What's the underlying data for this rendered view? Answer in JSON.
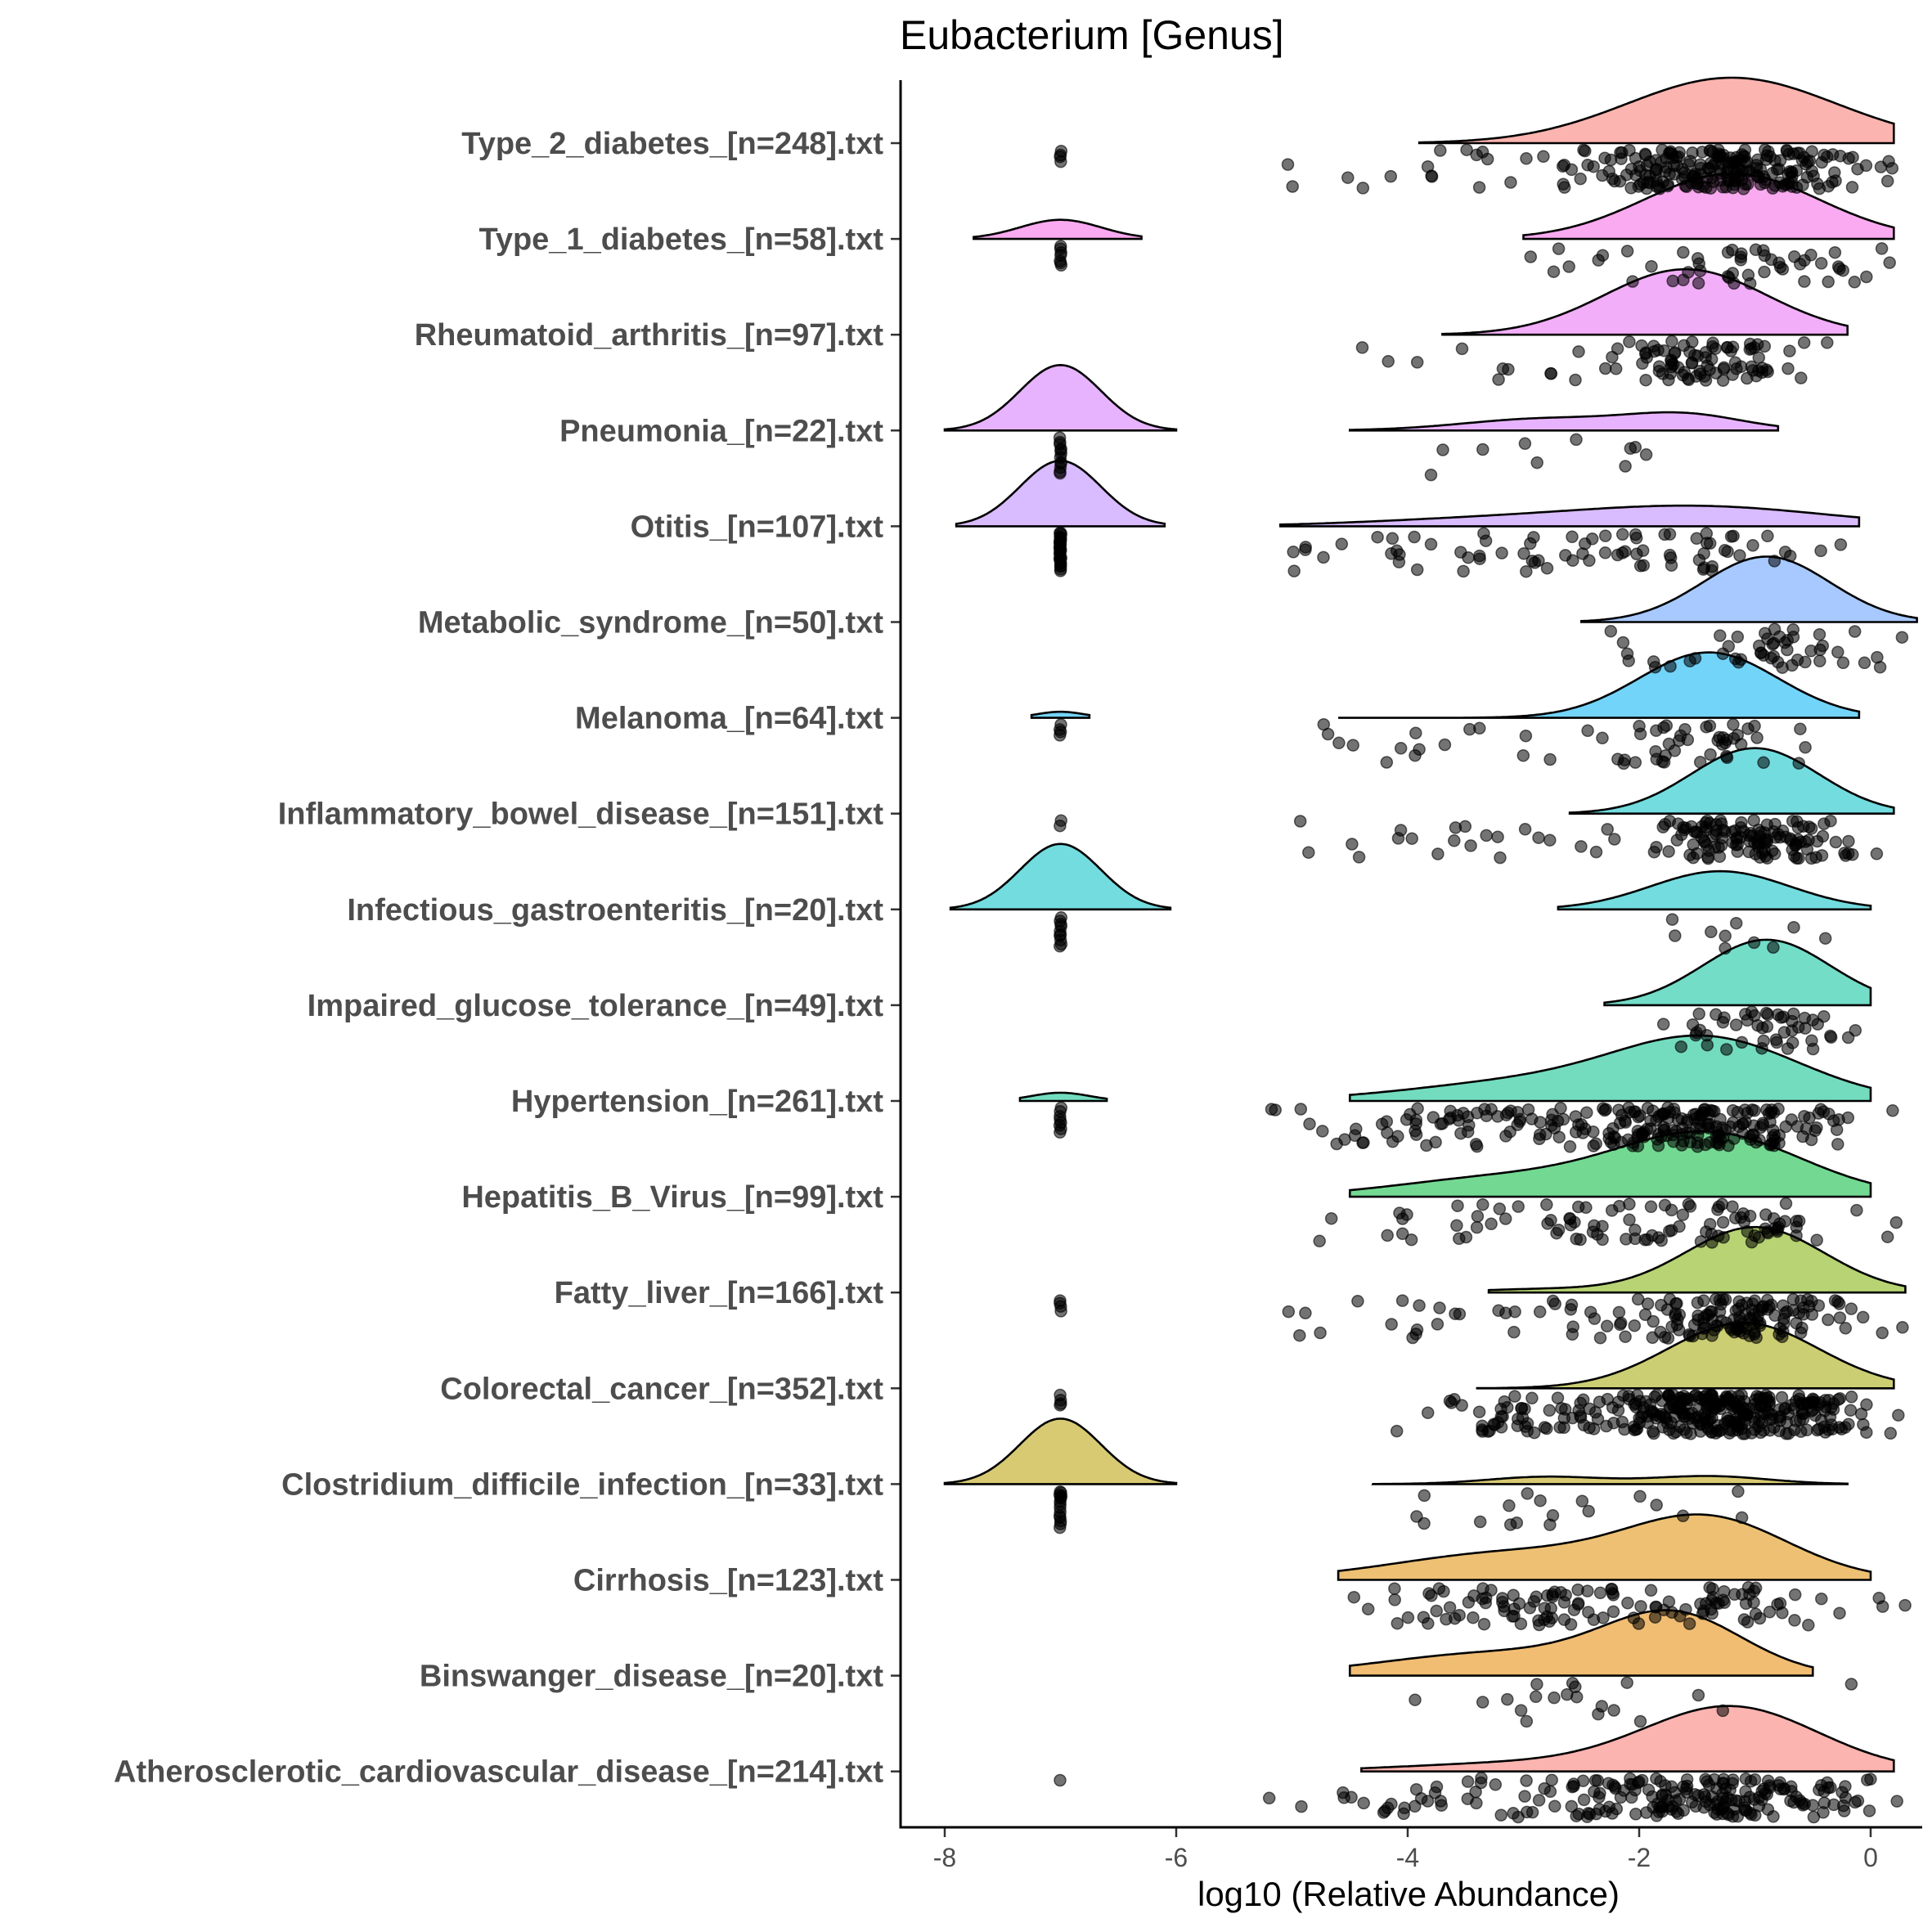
{
  "chart_data": {
    "type": "raincloud",
    "title": "Eubacterium [Genus]",
    "xlabel": "log10 (Relative Abundance)",
    "ylabel": "",
    "xlim": [
      -8.4,
      0.4
    ],
    "x_ticks": [
      -8,
      -6,
      -4,
      -2,
      0
    ],
    "x_tick_labels": [
      "-8",
      "-6",
      "-4",
      "-2",
      "0"
    ],
    "grid": false,
    "series": [
      {
        "name": "Type_2_diabetes_[n=248].txt",
        "n": 248,
        "color": "#f8766d",
        "modes": [
          {
            "mu": -1.2,
            "sd": 0.9,
            "w": 1
          }
        ],
        "range": [
          -3.9,
          0.2
        ],
        "zero_count": 4,
        "clusters": [
          {
            "mu": -1.2,
            "sd": 0.6,
            "w": 0.85
          },
          {
            "mu": -3.0,
            "sd": 0.9,
            "w": 0.15
          }
        ],
        "xmin_pts": -5.7
      },
      {
        "name": "Type_1_diabetes_[n=58].txt",
        "n": 58,
        "color": "#f564e3",
        "modes": [
          {
            "mu": -1.2,
            "sd": 0.75,
            "w": 0.88
          },
          {
            "mu": -7.0,
            "sd": 0.35,
            "w": 0.12
          }
        ],
        "range": [
          -3.0,
          0.2
        ],
        "zero_range": [
          -7.75,
          -6.3
        ],
        "zero_count": 7,
        "clusters": [
          {
            "mu": -1.0,
            "sd": 0.5,
            "w": 0.9
          },
          {
            "mu": -2.6,
            "sd": 0.8,
            "w": 0.1
          }
        ],
        "xmin_pts": -4.6
      },
      {
        "name": "Rheumatoid_arthritis_[n=97].txt",
        "n": 97,
        "color": "#e76bf3",
        "modes": [
          {
            "mu": -1.6,
            "sd": 0.7,
            "w": 1
          }
        ],
        "range": [
          -3.7,
          -0.2
        ],
        "zero_count": 0,
        "clusters": [
          {
            "mu": -1.5,
            "sd": 0.5,
            "w": 0.88
          },
          {
            "mu": -3.2,
            "sd": 0.6,
            "w": 0.12
          }
        ],
        "xmin_pts": -4.5
      },
      {
        "name": "Pneumonia_[n=22].txt",
        "n": 22,
        "color": "#d575fe",
        "modes": [
          {
            "mu": -7.0,
            "sd": 0.35,
            "w": 0.55
          },
          {
            "mu": -2.8,
            "sd": 0.7,
            "w": 0.2
          },
          {
            "mu": -1.6,
            "sd": 0.5,
            "w": 0.18
          }
        ],
        "range": [
          -4.5,
          -0.8
        ],
        "zero_range": [
          -8.0,
          -6.0
        ],
        "zero_count": 12,
        "clusters": [
          {
            "mu": -2.6,
            "sd": 0.8,
            "w": 1
          }
        ],
        "xmin_pts": -4.0
      },
      {
        "name": "Otitis_[n=107].txt",
        "n": 107,
        "color": "#b983ff",
        "modes": [
          {
            "mu": -7.0,
            "sd": 0.35,
            "w": 0.4
          },
          {
            "mu": -1.5,
            "sd": 1.1,
            "w": 0.38
          },
          {
            "mu": -3.5,
            "sd": 1.0,
            "w": 0.1
          }
        ],
        "range": [
          -5.1,
          -0.1
        ],
        "zero_range": [
          -7.9,
          -6.1
        ],
        "zero_count": 30,
        "clusters": [
          {
            "mu": -1.6,
            "sd": 0.7,
            "w": 0.6
          },
          {
            "mu": -3.5,
            "sd": 1.0,
            "w": 0.4
          }
        ],
        "xmin_pts": -5.0
      },
      {
        "name": "Metabolic_syndrome_[n=50].txt",
        "n": 50,
        "color": "#619cff",
        "modes": [
          {
            "mu": -0.9,
            "sd": 0.55,
            "w": 1
          }
        ],
        "range": [
          -2.5,
          0.4
        ],
        "zero_count": 0,
        "clusters": [
          {
            "mu": -0.8,
            "sd": 0.45,
            "w": 0.9
          },
          {
            "mu": -1.9,
            "sd": 0.4,
            "w": 0.1
          }
        ],
        "xmin_pts": -2.3
      },
      {
        "name": "Melanoma_[n=64].txt",
        "n": 64,
        "color": "#00b0f6",
        "modes": [
          {
            "mu": -1.4,
            "sd": 0.6,
            "w": 0.97
          },
          {
            "mu": -7.0,
            "sd": 0.2,
            "w": 0.03
          }
        ],
        "range": [
          -4.6,
          -0.1
        ],
        "zero_range": [
          -7.25,
          -6.75
        ],
        "zero_count": 4,
        "clusters": [
          {
            "mu": -1.5,
            "sd": 0.45,
            "w": 0.8
          },
          {
            "mu": -3.8,
            "sd": 0.7,
            "w": 0.2
          }
        ],
        "xmin_pts": -4.9
      },
      {
        "name": "Inflammatory_bowel_disease_[n=151].txt",
        "n": 151,
        "color": "#00bfc4",
        "modes": [
          {
            "mu": -1.0,
            "sd": 0.55,
            "w": 1
          }
        ],
        "range": [
          -2.6,
          0.2
        ],
        "zero_count": 2,
        "clusters": [
          {
            "mu": -1.0,
            "sd": 0.45,
            "w": 0.88
          },
          {
            "mu": -3.2,
            "sd": 0.9,
            "w": 0.12
          }
        ],
        "xmin_pts": -5.0
      },
      {
        "name": "Infectious_gastroenteritis_[n=20].txt",
        "n": 20,
        "color": "#00bfc4",
        "modes": [
          {
            "mu": -7.0,
            "sd": 0.35,
            "w": 0.5
          },
          {
            "mu": -1.3,
            "sd": 0.6,
            "w": 0.5
          }
        ],
        "range": [
          -2.7,
          0.0
        ],
        "zero_range": [
          -7.95,
          -6.05
        ],
        "zero_count": 10,
        "clusters": [
          {
            "mu": -1.3,
            "sd": 0.6,
            "w": 1
          }
        ],
        "xmin_pts": -2.3
      },
      {
        "name": "Impaired_glucose_tolerance_[n=49].txt",
        "n": 49,
        "color": "#00c19a",
        "modes": [
          {
            "mu": -0.9,
            "sd": 0.55,
            "w": 1
          }
        ],
        "range": [
          -2.3,
          0.0
        ],
        "zero_count": 0,
        "clusters": [
          {
            "mu": -0.9,
            "sd": 0.4,
            "w": 1
          }
        ],
        "xmin_pts": -1.9
      },
      {
        "name": "Hypertension_[n=261].txt",
        "n": 261,
        "color": "#00c08b",
        "modes": [
          {
            "mu": -1.4,
            "sd": 0.8,
            "w": 0.7
          },
          {
            "mu": -3.0,
            "sd": 1.0,
            "w": 0.27
          },
          {
            "mu": -7.0,
            "sd": 0.25,
            "w": 0.03
          }
        ],
        "range": [
          -4.5,
          0.0
        ],
        "zero_range": [
          -7.35,
          -6.6
        ],
        "zero_count": 8,
        "clusters": [
          {
            "mu": -1.6,
            "sd": 0.7,
            "w": 0.7
          },
          {
            "mu": -3.5,
            "sd": 0.8,
            "w": 0.3
          }
        ],
        "xmin_pts": -5.2
      },
      {
        "name": "Hepatitis_B_Virus_[n=99].txt",
        "n": 99,
        "color": "#00ba38",
        "modes": [
          {
            "mu": -1.4,
            "sd": 0.8,
            "w": 0.75
          },
          {
            "mu": -3.2,
            "sd": 0.9,
            "w": 0.25
          }
        ],
        "range": [
          -4.5,
          0.0
        ],
        "zero_count": 0,
        "clusters": [
          {
            "mu": -1.4,
            "sd": 0.7,
            "w": 0.65
          },
          {
            "mu": -3.2,
            "sd": 0.7,
            "w": 0.35
          }
        ],
        "xmin_pts": -4.8
      },
      {
        "name": "Fatty_liver_[n=166].txt",
        "n": 166,
        "color": "#7cae00",
        "modes": [
          {
            "mu": -1.0,
            "sd": 0.6,
            "w": 0.95
          },
          {
            "mu": -2.8,
            "sd": 0.6,
            "w": 0.05
          }
        ],
        "range": [
          -3.3,
          0.3
        ],
        "zero_count": 4,
        "clusters": [
          {
            "mu": -1.1,
            "sd": 0.5,
            "w": 0.85
          },
          {
            "mu": -3.5,
            "sd": 0.8,
            "w": 0.15
          }
        ],
        "xmin_pts": -5.1
      },
      {
        "name": "Colorectal_cancer_[n=352].txt",
        "n": 352,
        "color": "#a3a500",
        "modes": [
          {
            "mu": -1.1,
            "sd": 0.65,
            "w": 1
          }
        ],
        "range": [
          -3.4,
          0.2
        ],
        "zero_count": 4,
        "clusters": [
          {
            "mu": -1.2,
            "sd": 0.55,
            "w": 0.88
          },
          {
            "mu": -3.0,
            "sd": 0.6,
            "w": 0.12
          }
        ],
        "xmin_pts": -4.8
      },
      {
        "name": "Clostridium_difficile_infection_[n=33].txt",
        "n": 33,
        "color": "#b79f00",
        "modes": [
          {
            "mu": -7.0,
            "sd": 0.35,
            "w": 0.75
          },
          {
            "mu": -2.8,
            "sd": 0.5,
            "w": 0.12
          },
          {
            "mu": -1.4,
            "sd": 0.5,
            "w": 0.13
          }
        ],
        "range": [
          -4.3,
          -0.2
        ],
        "zero_range": [
          -8.0,
          -6.0
        ],
        "zero_count": 15,
        "clusters": [
          {
            "mu": -2.4,
            "sd": 1.0,
            "w": 1
          }
        ],
        "xmin_pts": -4.0
      },
      {
        "name": "Cirrhosis_[n=123].txt",
        "n": 123,
        "color": "#de8c00",
        "modes": [
          {
            "mu": -1.4,
            "sd": 0.7,
            "w": 0.6
          },
          {
            "mu": -3.1,
            "sd": 1.0,
            "w": 0.4
          }
        ],
        "range": [
          -4.6,
          0.0
        ],
        "zero_count": 0,
        "clusters": [
          {
            "mu": -1.6,
            "sd": 0.8,
            "w": 0.6
          },
          {
            "mu": -3.2,
            "sd": 0.7,
            "w": 0.4
          }
        ],
        "xmin_pts": -4.8
      },
      {
        "name": "Binswanger_disease_[n=20].txt",
        "n": 20,
        "color": "#e58700",
        "modes": [
          {
            "mu": -1.7,
            "sd": 0.6,
            "w": 0.6
          },
          {
            "mu": -3.2,
            "sd": 1.0,
            "w": 0.4
          }
        ],
        "range": [
          -4.5,
          -0.5
        ],
        "zero_count": 0,
        "clusters": [
          {
            "mu": -2.4,
            "sd": 0.9,
            "w": 1
          }
        ],
        "xmin_pts": -4.1
      },
      {
        "name": "Atherosclerotic_cardiovascular_disease_[n=214].txt",
        "n": 214,
        "color": "#f8766d",
        "modes": [
          {
            "mu": -1.2,
            "sd": 0.75,
            "w": 0.85
          },
          {
            "mu": -3.0,
            "sd": 1.0,
            "w": 0.15
          }
        ],
        "range": [
          -4.4,
          0.2
        ],
        "zero_count": 1,
        "clusters": [
          {
            "mu": -1.3,
            "sd": 0.7,
            "w": 0.8
          },
          {
            "mu": -3.2,
            "sd": 0.9,
            "w": 0.2
          }
        ],
        "xmin_pts": -5.5
      }
    ]
  }
}
